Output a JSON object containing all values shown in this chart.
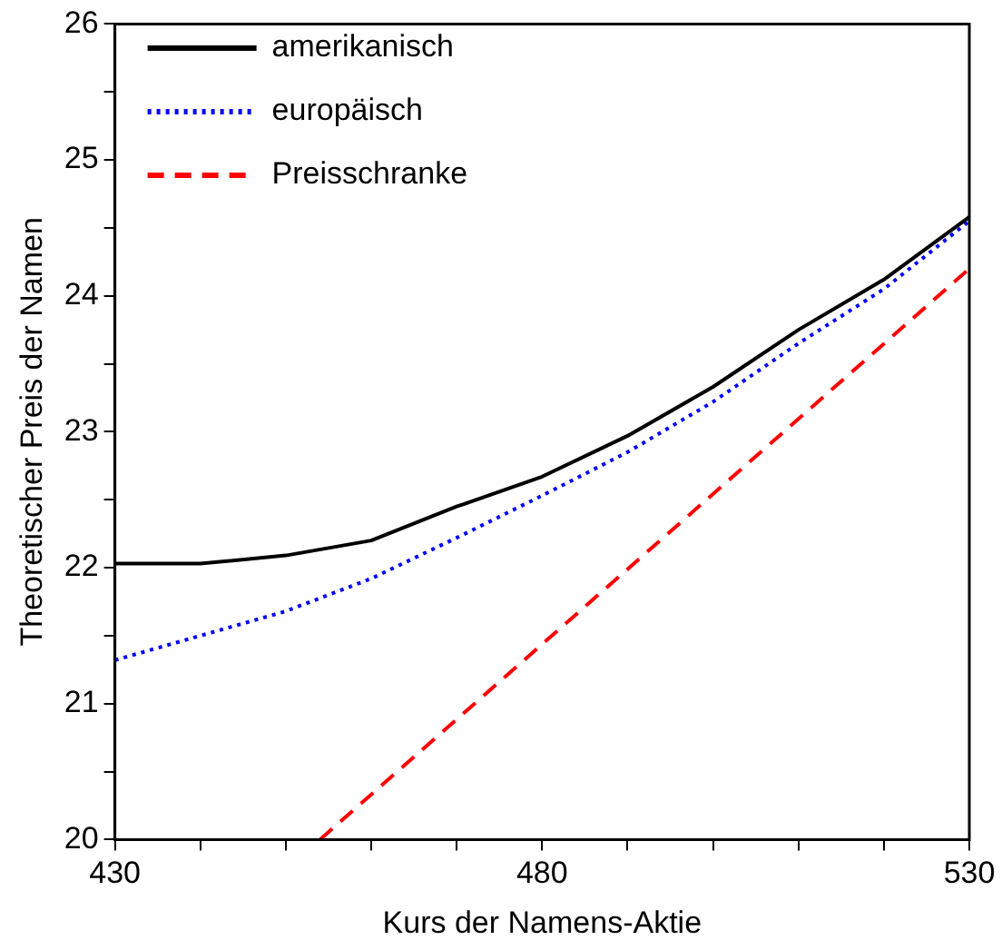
{
  "chart_data": {
    "type": "line",
    "xlabel": "Kurs der Namens-Aktie",
    "ylabel": "Theoretischer Preis der Namen",
    "xlim": [
      430,
      530
    ],
    "xticks": [
      430,
      {
        "value": 440,
        "label": null
      },
      {
        "value": 450,
        "label": null
      },
      {
        "value": 460,
        "label": null
      },
      {
        "value": 470,
        "label": null
      },
      480,
      {
        "value": 490,
        "label": null
      },
      {
        "value": 500,
        "label": null
      },
      {
        "value": 510,
        "label": null
      },
      {
        "value": 520,
        "label": null
      },
      530
    ],
    "ylim": [
      20,
      26
    ],
    "yticks": [
      20,
      {
        "value": 20.5,
        "label": null
      },
      21,
      {
        "value": 21.5,
        "label": null
      },
      22,
      {
        "value": 22.5,
        "label": null
      },
      23,
      {
        "value": 23.5,
        "label": null
      },
      24,
      {
        "value": 24.5,
        "label": null
      },
      25,
      {
        "value": 25.5,
        "label": null
      },
      26
    ],
    "legend": "top left",
    "grid": false,
    "marker": "none",
    "series": [
      {
        "name": "amerikanisch",
        "color": "#000000",
        "line_style": "solid",
        "x": [
          430,
          440,
          450,
          460,
          470,
          480,
          490,
          500,
          510,
          520,
          530
        ],
        "values": [
          22.03,
          22.03,
          22.09,
          22.2,
          22.45,
          22.67,
          22.97,
          23.33,
          23.75,
          24.12,
          24.58
        ]
      },
      {
        "name": "europäisch",
        "color": "#0000ff",
        "line_style": "dotted",
        "x": [
          430,
          440,
          450,
          460,
          470,
          480,
          490,
          500,
          510,
          520,
          530
        ],
        "values": [
          21.32,
          21.5,
          21.68,
          21.92,
          22.22,
          22.53,
          22.85,
          23.22,
          23.65,
          24.05,
          24.55
        ]
      },
      {
        "name": "Preisschranke",
        "color": "#ff0000",
        "line_style": "dashed",
        "x": [
          454,
          530
        ],
        "values": [
          20,
          24.2
        ]
      }
    ]
  }
}
